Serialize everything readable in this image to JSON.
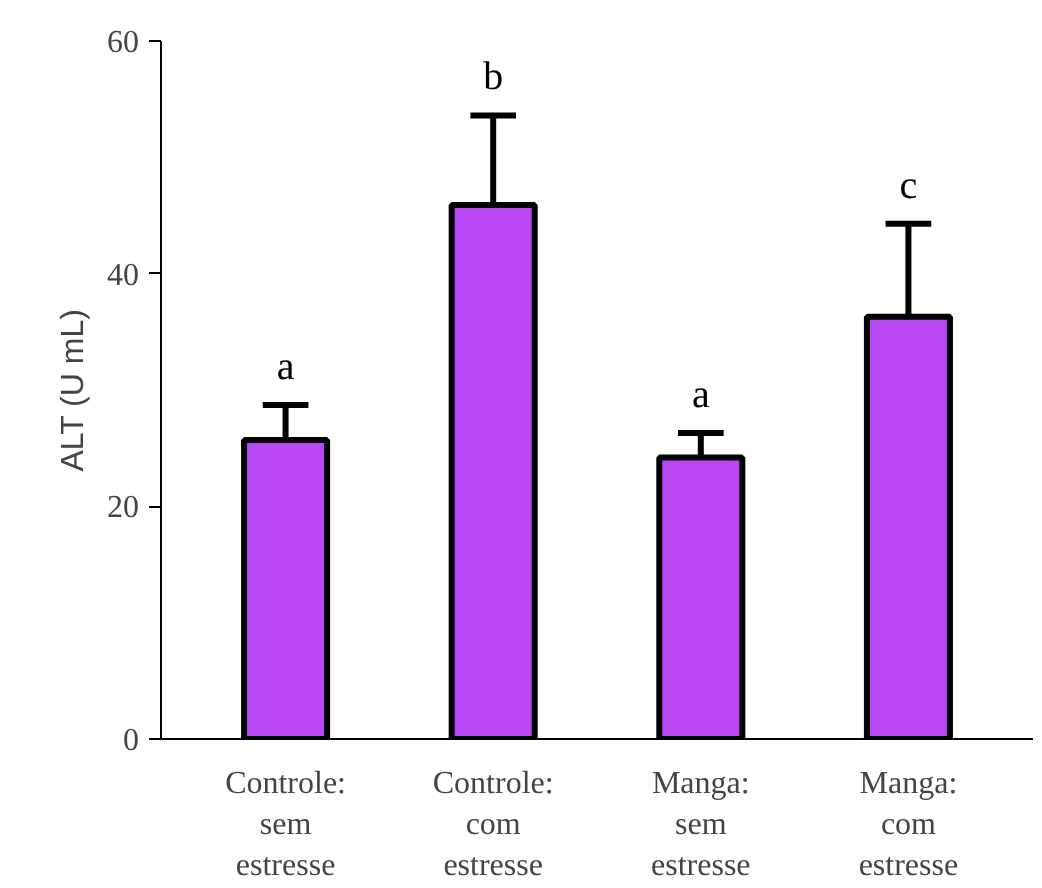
{
  "chart_data": {
    "type": "bar",
    "ylabel": "ALT (U mL)",
    "categories": [
      "Controle:\nsem\nestresse",
      "Controle:\ncom\nestresse",
      "Manga:\nsem\nestresse",
      "Manga:\ncom\nestresse"
    ],
    "values": [
      25.7,
      45.9,
      24.2,
      36.3
    ],
    "errors": [
      [
        25.7,
        28.7
      ],
      [
        45.9,
        53.6
      ],
      [
        24.2,
        26.3
      ],
      [
        36.3,
        44.3
      ]
    ],
    "color": "#b848f4",
    "ylim": [
      0,
      60
    ],
    "yticks": [
      0,
      20,
      40,
      60
    ],
    "grid": false,
    "annotations": [
      "a",
      "b",
      "a",
      "c"
    ]
  }
}
